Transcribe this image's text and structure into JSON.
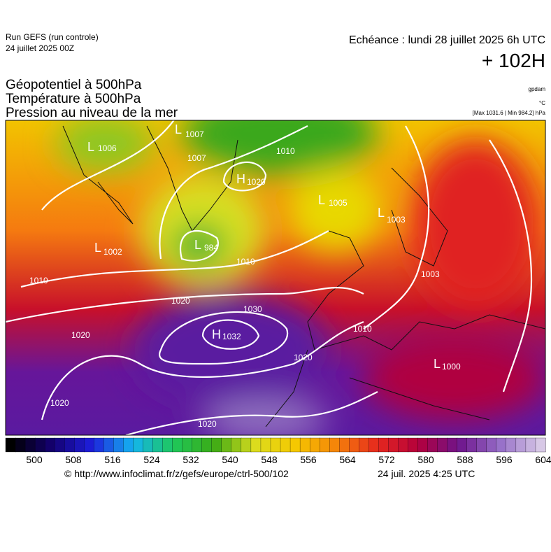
{
  "header": {
    "run": "Run GEFS (run controle)",
    "date": "24 juillet 2025 00Z",
    "echeance": "Echéance : lundi 28 juillet 2025 6h UTC",
    "lead": "+ 102H"
  },
  "titles": [
    "Géopotentiel à 500hPa",
    "Température à 500hPa",
    "Pression au niveau de la mer"
  ],
  "units": [
    "gpdam",
    "°C",
    "[Max 1031.6 | Min 984.2] hPa"
  ],
  "map": {
    "centers": [
      {
        "type": "L",
        "value": "1006"
      },
      {
        "type": "L",
        "value": "1007"
      },
      {
        "type": "H",
        "value": "1020"
      },
      {
        "type": "L",
        "value": "1005"
      },
      {
        "type": "L",
        "value": "984"
      },
      {
        "type": "L",
        "value": "1002"
      },
      {
        "type": "H",
        "value": "1032"
      },
      {
        "type": "L",
        "value": "1003"
      },
      {
        "type": "L",
        "value": "1000"
      }
    ],
    "isobar_labels": [
      "1007",
      "1010",
      "1010",
      "1010",
      "1020",
      "1020",
      "1030",
      "1020",
      "1020",
      "1020",
      "1010",
      "1003"
    ]
  },
  "colorbar": {
    "ticks": [
      500,
      508,
      516,
      524,
      532,
      540,
      548,
      556,
      564,
      572,
      580,
      588,
      596,
      604
    ]
  },
  "footer": {
    "url": "© http://www.infoclimat.fr/z/gefs/europe/ctrl-500/102",
    "time": "24 juil. 2025  4:25 UTC"
  }
}
